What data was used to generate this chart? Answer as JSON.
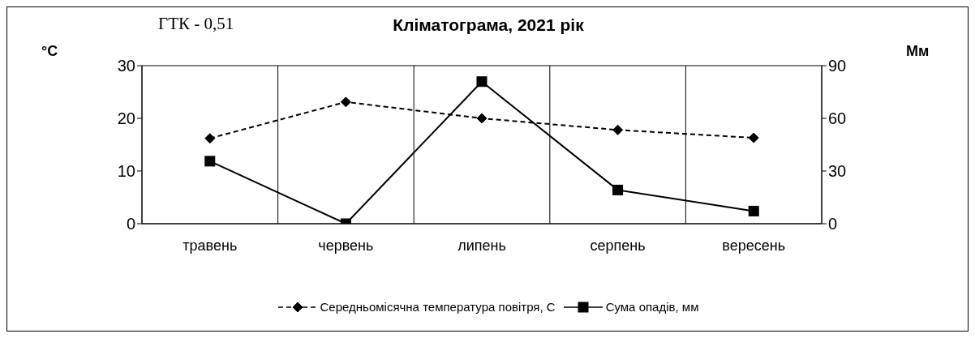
{
  "chart_data": {
    "type": "line",
    "title": "Кліматограма, 2021 рік",
    "ylabel": "°C",
    "y2label": "Мм",
    "annotations": [
      "ГТК - 0,51"
    ],
    "categories": [
      "травень",
      "червень",
      "липень",
      "серпень",
      "вересень"
    ],
    "series": [
      {
        "name": "Середньомісячна температура повітря, С",
        "color": "#000000",
        "values": [
          16.2,
          23.1,
          20.0,
          17.8,
          16.3
        ],
        "marker": "diamond",
        "line_style": "dashed"
      },
      {
        "name": "Сума опадів, мм",
        "color": "#000000",
        "values": [
          35.6,
          0,
          80.9,
          19.2,
          7.2
        ],
        "marker": "square",
        "line_style": "solid",
        "axis": "y2"
      }
    ],
    "ylim": [
      0,
      30
    ],
    "yticks": [
      0,
      10,
      20,
      30
    ],
    "y2lim": [
      0,
      90
    ],
    "y2ticks": [
      0,
      30,
      60,
      90
    ],
    "grid": true,
    "legend": "bottom"
  }
}
